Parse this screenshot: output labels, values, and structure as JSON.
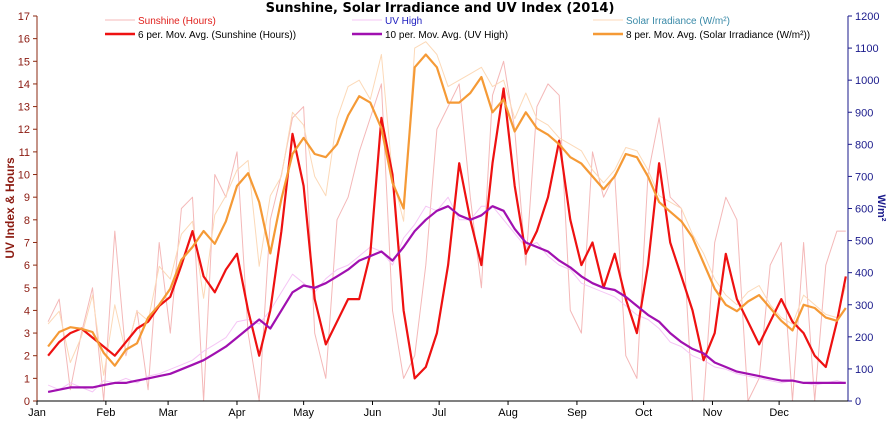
{
  "chart_data": {
    "type": "line",
    "title": "Sunshine, Solar Irradiance and UV Index (2014)",
    "xlabel": "",
    "ylabel_left": "UV Index & Hours",
    "ylabel_right": "W/m²",
    "ylim_left": [
      0,
      17
    ],
    "ylim_right": [
      0,
      1200
    ],
    "yticks_left": [
      "0",
      "1",
      "2",
      "3",
      "4",
      "5",
      "6",
      "7",
      "8",
      "9",
      "10",
      "11",
      "12",
      "13",
      "14",
      "15",
      "16",
      "17"
    ],
    "yticks_right": [
      "0",
      "100",
      "200",
      "300",
      "400",
      "500",
      "600",
      "700",
      "800",
      "900",
      "1000",
      "1100",
      "1200"
    ],
    "months": [
      "Jan",
      "Feb",
      "Mar",
      "Apr",
      "May",
      "Jun",
      "Jul",
      "Aug",
      "Sep",
      "Oct",
      "Nov",
      "Dec"
    ],
    "x_unit": "day of year (sampled every 5 days)",
    "x": [
      5,
      10,
      15,
      20,
      25,
      30,
      35,
      40,
      45,
      50,
      55,
      60,
      65,
      70,
      75,
      80,
      85,
      90,
      95,
      100,
      105,
      110,
      115,
      120,
      125,
      130,
      135,
      140,
      145,
      150,
      155,
      160,
      165,
      170,
      175,
      180,
      185,
      190,
      195,
      200,
      205,
      210,
      215,
      220,
      225,
      230,
      235,
      240,
      245,
      250,
      255,
      260,
      265,
      270,
      275,
      280,
      285,
      290,
      295,
      300,
      305,
      310,
      315,
      320,
      325,
      330,
      335,
      340,
      345,
      350,
      355,
      360,
      364
    ],
    "legend": [
      {
        "label": "Sunshine (Hours)",
        "color": "#f4b8b8",
        "text_color": "#e0201c",
        "width": "thin"
      },
      {
        "label": "6 per. Mov. Avg. (Sunshine (Hours))",
        "color": "#ee1111",
        "text_color": "#000000",
        "width": "thick"
      },
      {
        "label": "UV High",
        "color": "#f5c6f5",
        "text_color": "#2020c0",
        "width": "thin"
      },
      {
        "label": "10 per. Mov. Avg. (UV High)",
        "color": "#a010b0",
        "text_color": "#000000",
        "width": "thick"
      },
      {
        "label": "Solar Irradiance (W/m²)",
        "color": "#fcd9b8",
        "text_color": "#3a8aa8",
        "width": "thin"
      },
      {
        "label": "8 per. Mov. Avg. (Solar Irradiance (W/m²))",
        "color": "#f59a36",
        "text_color": "#000000",
        "width": "thick"
      }
    ],
    "series": [
      {
        "name": "6 per. Mov. Avg. (Sunshine (Hours))",
        "axis": "left",
        "values": [
          2.0,
          2.6,
          3.0,
          3.2,
          2.8,
          2.4,
          2.0,
          2.6,
          3.2,
          3.5,
          4.2,
          4.6,
          6.0,
          7.5,
          5.5,
          4.8,
          5.8,
          6.5,
          4.0,
          2.0,
          4.0,
          7.5,
          11.8,
          9.5,
          4.5,
          2.5,
          3.5,
          4.5,
          4.5,
          6.5,
          12.5,
          10.0,
          4.0,
          1.0,
          1.5,
          3.0,
          6.0,
          10.5,
          8.0,
          6.0,
          10.5,
          13.8,
          9.5,
          6.5,
          7.5,
          9.0,
          11.5,
          8.0,
          6.0,
          7.0,
          5.0,
          6.5,
          4.5,
          3.0,
          6.0,
          10.5,
          7.0,
          5.5,
          4.0,
          1.8,
          3.0,
          6.5,
          4.5,
          3.5,
          2.5,
          3.5,
          4.5,
          3.5,
          3.0,
          2.0,
          1.5,
          3.5,
          5.5
        ]
      },
      {
        "name": "10 per. Mov. Avg. (UV High)",
        "axis": "left",
        "values": [
          0.4,
          0.5,
          0.6,
          0.6,
          0.6,
          0.7,
          0.8,
          0.8,
          0.9,
          1.0,
          1.1,
          1.2,
          1.4,
          1.6,
          1.8,
          2.1,
          2.4,
          2.8,
          3.2,
          3.6,
          3.2,
          4.0,
          4.8,
          5.1,
          5.0,
          5.2,
          5.5,
          5.8,
          6.2,
          6.4,
          6.6,
          6.2,
          6.8,
          7.5,
          8.0,
          8.4,
          8.6,
          8.2,
          8.0,
          8.2,
          8.6,
          8.4,
          7.6,
          7.0,
          6.8,
          6.6,
          6.2,
          5.9,
          5.5,
          5.2,
          5.0,
          4.9,
          4.6,
          4.2,
          3.8,
          3.5,
          3.0,
          2.6,
          2.3,
          2.1,
          1.7,
          1.5,
          1.3,
          1.2,
          1.1,
          1.0,
          0.9,
          0.9,
          0.8,
          0.8,
          0.8,
          0.8,
          0.8
        ]
      },
      {
        "name": "8 per. Mov. Avg. (Solar Irradiance (W/m²))",
        "axis": "right",
        "values": [
          170,
          215,
          230,
          225,
          215,
          150,
          110,
          160,
          180,
          260,
          300,
          350,
          440,
          480,
          530,
          490,
          560,
          670,
          710,
          620,
          460,
          630,
          770,
          820,
          770,
          760,
          800,
          890,
          950,
          930,
          850,
          680,
          600,
          1040,
          1080,
          1040,
          930,
          930,
          960,
          1010,
          900,
          940,
          840,
          900,
          850,
          830,
          800,
          760,
          740,
          700,
          660,
          700,
          770,
          760,
          700,
          620,
          590,
          560,
          510,
          430,
          350,
          300,
          280,
          310,
          330,
          290,
          250,
          220,
          300,
          290,
          260,
          250,
          290
        ]
      },
      {
        "name": "Sunshine (Hours)",
        "axis": "left",
        "style": "raw daily (summarized)",
        "values": [
          3.5,
          4.5,
          0.5,
          3.0,
          5.0,
          0.0,
          7.5,
          2.0,
          4.0,
          0.5,
          7.0,
          3.0,
          8.5,
          9.0,
          0.0,
          10.0,
          9.0,
          11.0,
          3.0,
          0.0,
          8.0,
          10.0,
          12.5,
          13.0,
          3.0,
          1.0,
          8.0,
          9.0,
          11.0,
          12.5,
          14.0,
          4.0,
          1.0,
          2.0,
          6.0,
          12.0,
          13.0,
          14.0,
          9.0,
          5.0,
          13.5,
          15.0,
          12.0,
          6.0,
          13.0,
          14.0,
          13.5,
          4.0,
          3.0,
          11.0,
          9.0,
          10.0,
          2.0,
          1.0,
          10.0,
          12.5,
          9.0,
          8.5,
          0.0,
          0.0,
          7.0,
          9.0,
          8.0,
          0.0,
          1.0,
          6.0,
          7.0,
          0.0,
          7.0,
          0.0,
          6.0,
          7.5,
          7.5
        ]
      },
      {
        "name": "UV High",
        "axis": "left",
        "style": "raw daily (summarized)",
        "values": [
          0.7,
          0.5,
          0.8,
          0.6,
          0.4,
          0.9,
          0.8,
          1.0,
          0.8,
          1.1,
          1.2,
          1.4,
          1.6,
          1.8,
          2.2,
          2.5,
          2.8,
          3.5,
          3.6,
          3.4,
          4.0,
          4.8,
          5.6,
          5.2,
          4.8,
          5.4,
          5.8,
          6.0,
          6.4,
          6.8,
          6.6,
          6.0,
          7.2,
          7.8,
          8.6,
          8.4,
          9.0,
          8.0,
          8.0,
          8.6,
          8.6,
          8.0,
          7.4,
          6.8,
          7.0,
          6.4,
          6.0,
          5.8,
          5.2,
          5.0,
          4.8,
          4.6,
          4.2,
          3.8,
          3.6,
          3.2,
          2.6,
          2.4,
          2.0,
          1.8,
          1.5,
          1.4,
          1.2,
          1.1,
          1.0,
          0.9,
          0.8,
          0.9,
          0.8,
          0.7,
          0.8,
          0.9,
          0.8
        ]
      },
      {
        "name": "Solar Irradiance (W/m²)",
        "axis": "right",
        "style": "raw daily (summarized)",
        "values": [
          240,
          280,
          120,
          200,
          330,
          80,
          300,
          150,
          280,
          250,
          420,
          380,
          520,
          560,
          320,
          580,
          640,
          720,
          750,
          420,
          640,
          700,
          900,
          860,
          700,
          640,
          880,
          980,
          1000,
          940,
          1080,
          700,
          560,
          1100,
          1120,
          1080,
          980,
          1000,
          1020,
          1040,
          980,
          1000,
          880,
          960,
          880,
          860,
          820,
          800,
          780,
          720,
          680,
          720,
          790,
          780,
          720,
          640,
          620,
          600,
          520,
          460,
          380,
          330,
          300,
          340,
          360,
          300,
          260,
          240,
          330,
          300,
          270,
          260,
          360
        ]
      }
    ]
  }
}
